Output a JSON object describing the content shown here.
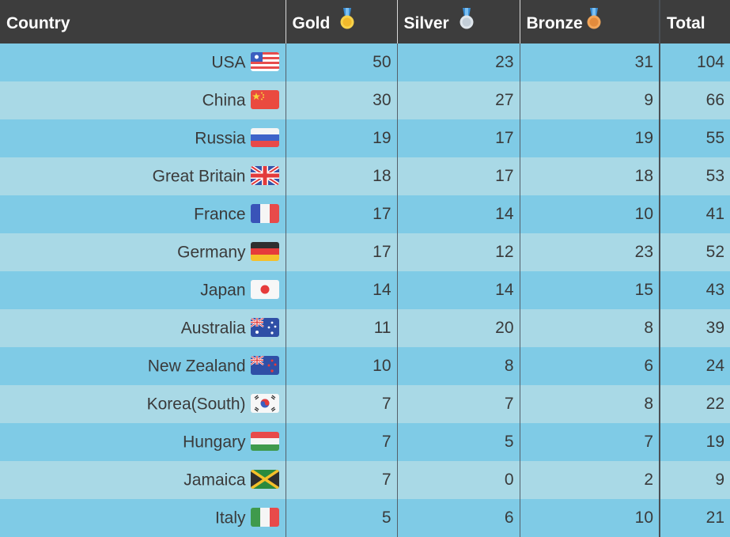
{
  "headers": {
    "country": "Country",
    "gold": "Gold",
    "silver": "Silver",
    "bronze": "Bronze",
    "total": "Total"
  },
  "medal_icons": {
    "gold": "gold-medal-icon",
    "silver": "silver-medal-icon",
    "bronze": "bronze-medal-icon"
  },
  "colors": {
    "header_bg": "#3d3d3d",
    "row_odd": "#7fcbe6",
    "row_even": "#a9d9e6"
  },
  "rows": [
    {
      "country": "USA",
      "flag": "usa-flag-icon",
      "gold": "50",
      "silver": "23",
      "bronze": "31",
      "total": "104"
    },
    {
      "country": "China",
      "flag": "china-flag-icon",
      "gold": "30",
      "silver": "27",
      "bronze": "9",
      "total": "66"
    },
    {
      "country": "Russia",
      "flag": "russia-flag-icon",
      "gold": "19",
      "silver": "17",
      "bronze": "19",
      "total": "55"
    },
    {
      "country": "Great Britain",
      "flag": "great-britain-flag-icon",
      "gold": "18",
      "silver": "17",
      "bronze": "18",
      "total": "53"
    },
    {
      "country": "France",
      "flag": "france-flag-icon",
      "gold": "17",
      "silver": "14",
      "bronze": "10",
      "total": "41"
    },
    {
      "country": "Germany",
      "flag": "germany-flag-icon",
      "gold": "17",
      "silver": "12",
      "bronze": "23",
      "total": "52"
    },
    {
      "country": "Japan",
      "flag": "japan-flag-icon",
      "gold": "14",
      "silver": "14",
      "bronze": "15",
      "total": "43"
    },
    {
      "country": "Australia",
      "flag": "australia-flag-icon",
      "gold": "11",
      "silver": "20",
      "bronze": "8",
      "total": "39"
    },
    {
      "country": "New Zealand",
      "flag": "new-zealand-flag-icon",
      "gold": "10",
      "silver": "8",
      "bronze": "6",
      "total": "24"
    },
    {
      "country": "Korea(South)",
      "flag": "south-korea-flag-icon",
      "gold": "7",
      "silver": "7",
      "bronze": "8",
      "total": "22"
    },
    {
      "country": "Hungary",
      "flag": "hungary-flag-icon",
      "gold": "7",
      "silver": "5",
      "bronze": "7",
      "total": "19"
    },
    {
      "country": "Jamaica",
      "flag": "jamaica-flag-icon",
      "gold": "7",
      "silver": "0",
      "bronze": "2",
      "total": "9"
    },
    {
      "country": "Italy",
      "flag": "italy-flag-icon",
      "gold": "5",
      "silver": "6",
      "bronze": "10",
      "total": "21"
    }
  ]
}
